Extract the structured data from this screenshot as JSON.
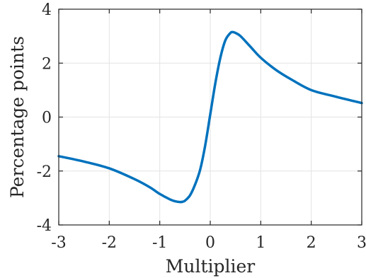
{
  "chart_data": {
    "type": "line",
    "title": "",
    "xlabel": "Multiplier",
    "ylabel": "Percentage points",
    "xlim": [
      -3,
      3
    ],
    "ylim": [
      -4,
      4
    ],
    "xticks": [
      -3,
      -2,
      -1,
      0,
      1,
      2,
      3
    ],
    "yticks": [
      -4,
      -2,
      0,
      2,
      4
    ],
    "xtick_labels": [
      "-3",
      "-2",
      "-1",
      "0",
      "1",
      "2",
      "3"
    ],
    "ytick_labels": [
      "-4",
      "-2",
      "0",
      "2",
      "4"
    ],
    "grid": true,
    "legend": "none",
    "series": [
      {
        "color": "#0072bd",
        "x": [
          -3,
          -2.5,
          -2,
          -1.5,
          -1.2,
          -1,
          -0.8,
          -0.7,
          -0.6,
          -0.55,
          -0.5,
          -0.4,
          -0.3,
          -0.2,
          -0.1,
          0,
          0.1,
          0.2,
          0.3,
          0.4,
          0.45,
          0.5,
          0.6,
          0.8,
          1,
          1.3,
          1.6,
          2,
          2.5,
          3
        ],
        "y": [
          -1.45,
          -1.65,
          -1.9,
          -2.3,
          -2.6,
          -2.85,
          -3.05,
          -3.12,
          -3.15,
          -3.14,
          -3.1,
          -2.9,
          -2.5,
          -1.95,
          -1.05,
          0.1,
          1.25,
          2.2,
          2.85,
          3.12,
          3.15,
          3.12,
          3.0,
          2.6,
          2.2,
          1.75,
          1.4,
          1.0,
          0.75,
          0.52
        ]
      }
    ]
  }
}
